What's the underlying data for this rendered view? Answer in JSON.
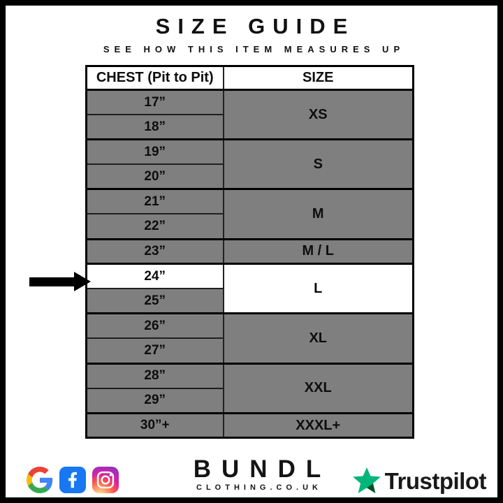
{
  "page": {
    "title": "SIZE GUIDE",
    "subtitle": "SEE HOW THIS ITEM MEASURES UP"
  },
  "table": {
    "headers": [
      "CHEST (Pit to Pit)",
      "SIZE"
    ],
    "groups": [
      {
        "size": "XS",
        "size_highlighted": false,
        "measurements": [
          {
            "label": "17”",
            "highlighted": false
          },
          {
            "label": "18”",
            "highlighted": false
          }
        ]
      },
      {
        "size": "S",
        "size_highlighted": false,
        "measurements": [
          {
            "label": "19”",
            "highlighted": false
          },
          {
            "label": "20”",
            "highlighted": false
          }
        ]
      },
      {
        "size": "M",
        "size_highlighted": false,
        "measurements": [
          {
            "label": "21”",
            "highlighted": false
          },
          {
            "label": "22”",
            "highlighted": false
          }
        ]
      },
      {
        "size": "M / L",
        "size_highlighted": false,
        "measurements": [
          {
            "label": "23”",
            "highlighted": false
          }
        ]
      },
      {
        "size": "L",
        "size_highlighted": true,
        "measurements": [
          {
            "label": "24”",
            "highlighted": true
          },
          {
            "label": "25”",
            "highlighted": false
          }
        ]
      },
      {
        "size": "XL",
        "size_highlighted": false,
        "measurements": [
          {
            "label": "26”",
            "highlighted": false
          },
          {
            "label": "27”",
            "highlighted": false
          }
        ]
      },
      {
        "size": "XXL",
        "size_highlighted": false,
        "measurements": [
          {
            "label": "28”",
            "highlighted": false
          },
          {
            "label": "29”",
            "highlighted": false
          }
        ]
      },
      {
        "size": "XXXL+",
        "size_highlighted": false,
        "measurements": [
          {
            "label": "30”+",
            "highlighted": false
          }
        ]
      }
    ],
    "selected_measurement": "24”",
    "selected_size": "L"
  },
  "footer": {
    "brand_name": "BUNDL",
    "brand_domain": "CLOTHING.CO.UK",
    "trustpilot_label": "Trustpilot",
    "social_icons": [
      "google",
      "facebook",
      "instagram"
    ]
  },
  "colors": {
    "row_gray": "#7f7f7f",
    "highlight_white": "#ffffff",
    "border_black": "#000000",
    "facebook_blue": "#1877f2",
    "trustpilot_green": "#00b67a",
    "trustpilot_dark_green": "#005128"
  }
}
